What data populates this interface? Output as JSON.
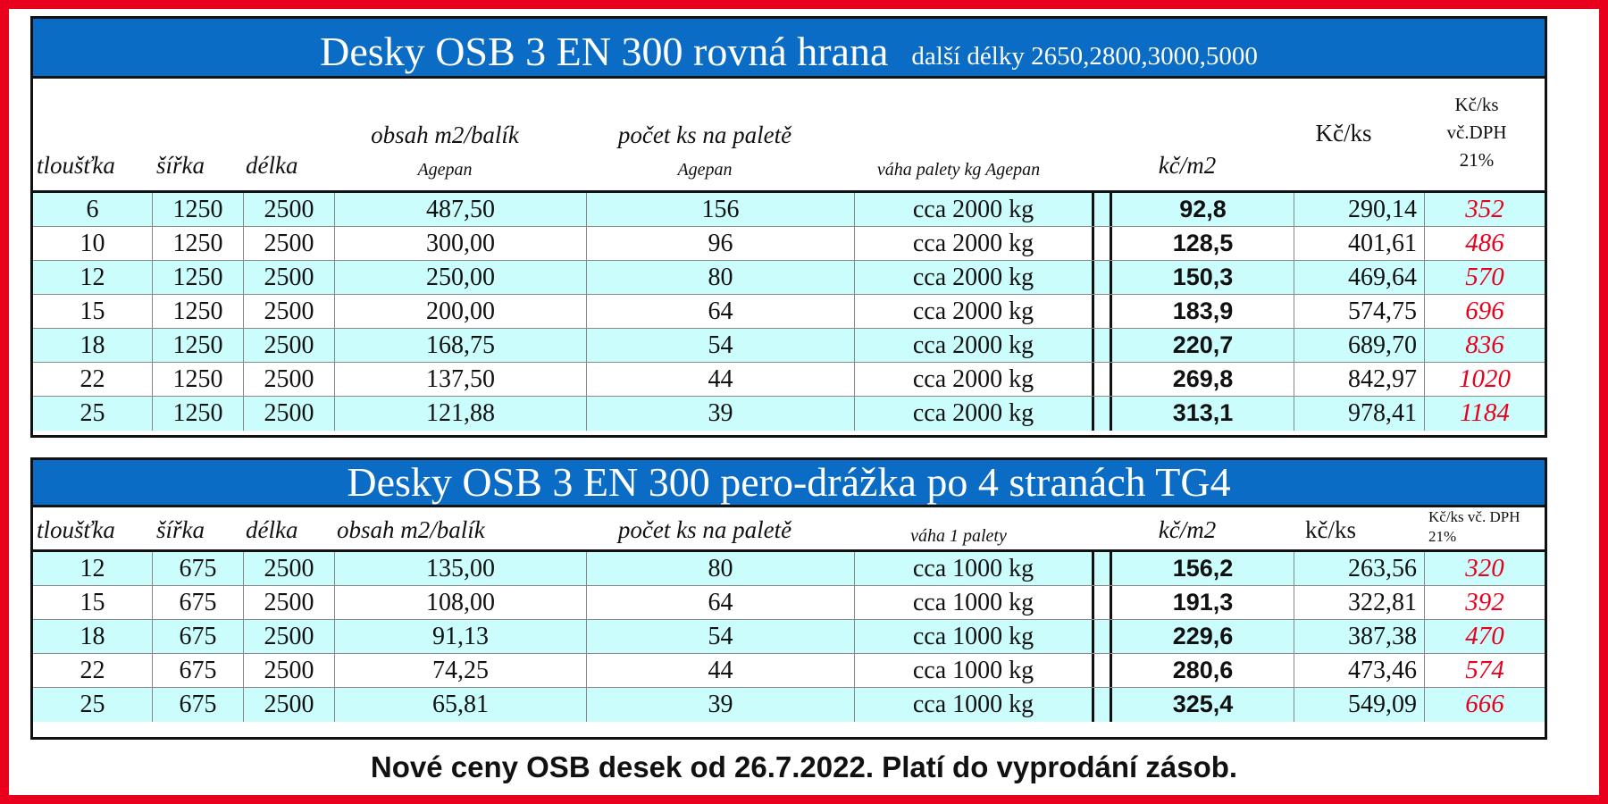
{
  "table1": {
    "title": "Desky OSB 3  EN 300  rovná hrana",
    "subtitle": "další délky 2650,2800,3000,5000",
    "headers": {
      "thickness": "tloušťka",
      "width": "šířka",
      "length": "délka",
      "content": "obsah m2/balík",
      "content_sub": "Agepan",
      "count": "počet ks na paletě",
      "count_sub": "Agepan",
      "weight": "váha palety kg  Agepan",
      "price_m2": "kč/m2",
      "price_pcs": "Kč/ks",
      "price_vat_1": "Kč/ks",
      "price_vat_2": "vč.DPH",
      "price_vat_3": "21%"
    },
    "rows": [
      [
        "6",
        "1250",
        "2500",
        "487,50",
        "156",
        "cca 2000 kg",
        "92,8",
        "290,14",
        "352"
      ],
      [
        "10",
        "1250",
        "2500",
        "300,00",
        "96",
        "cca 2000 kg",
        "128,5",
        "401,61",
        "486"
      ],
      [
        "12",
        "1250",
        "2500",
        "250,00",
        "80",
        "cca 2000 kg",
        "150,3",
        "469,64",
        "570"
      ],
      [
        "15",
        "1250",
        "2500",
        "200,00",
        "64",
        "cca 2000 kg",
        "183,9",
        "574,75",
        "696"
      ],
      [
        "18",
        "1250",
        "2500",
        "168,75",
        "54",
        "cca 2000 kg",
        "220,7",
        "689,70",
        "836"
      ],
      [
        "22",
        "1250",
        "2500",
        "137,50",
        "44",
        "cca 2000 kg",
        "269,8",
        "842,97",
        "1020"
      ],
      [
        "25",
        "1250",
        "2500",
        "121,88",
        "39",
        "cca 2000 kg",
        "313,1",
        "978,41",
        "1184"
      ]
    ]
  },
  "table2": {
    "title": "Desky OSB 3 EN 300  pero-drážka po 4 stranách TG4",
    "headers": {
      "thickness": "tloušťka",
      "width": "šířka",
      "length": "délka",
      "content": "obsah m2/balík",
      "count": "počet ks na paletě",
      "weight": "váha 1 palety",
      "price_m2": "kč/m2",
      "price_pcs": "kč/ks",
      "price_vat_1": "Kč/ks vč. DPH",
      "price_vat_2": "21%"
    },
    "rows": [
      [
        "12",
        "675",
        "2500",
        "135,00",
        "80",
        "cca 1000 kg",
        "156,2",
        "263,56",
        "320"
      ],
      [
        "15",
        "675",
        "2500",
        "108,00",
        "64",
        "cca 1000 kg",
        "191,3",
        "322,81",
        "392"
      ],
      [
        "18",
        "675",
        "2500",
        "91,13",
        "54",
        "cca 1000 kg",
        "229,6",
        "387,38",
        "470"
      ],
      [
        "22",
        "675",
        "2500",
        "74,25",
        "44",
        "cca 1000 kg",
        "280,6",
        "473,46",
        "574"
      ],
      [
        "25",
        "675",
        "2500",
        "65,81",
        "39",
        "cca 1000 kg",
        "325,4",
        "549,09",
        "666"
      ]
    ]
  },
  "footer": "Nové ceny OSB desek od 26.7.2022. Platí do vyprodání zásob.",
  "colors": {
    "frame": "#e8001c",
    "title_bar": "#0a6cc4",
    "row_tint": "#ccfdfd",
    "vat_price": "#e8001c"
  }
}
